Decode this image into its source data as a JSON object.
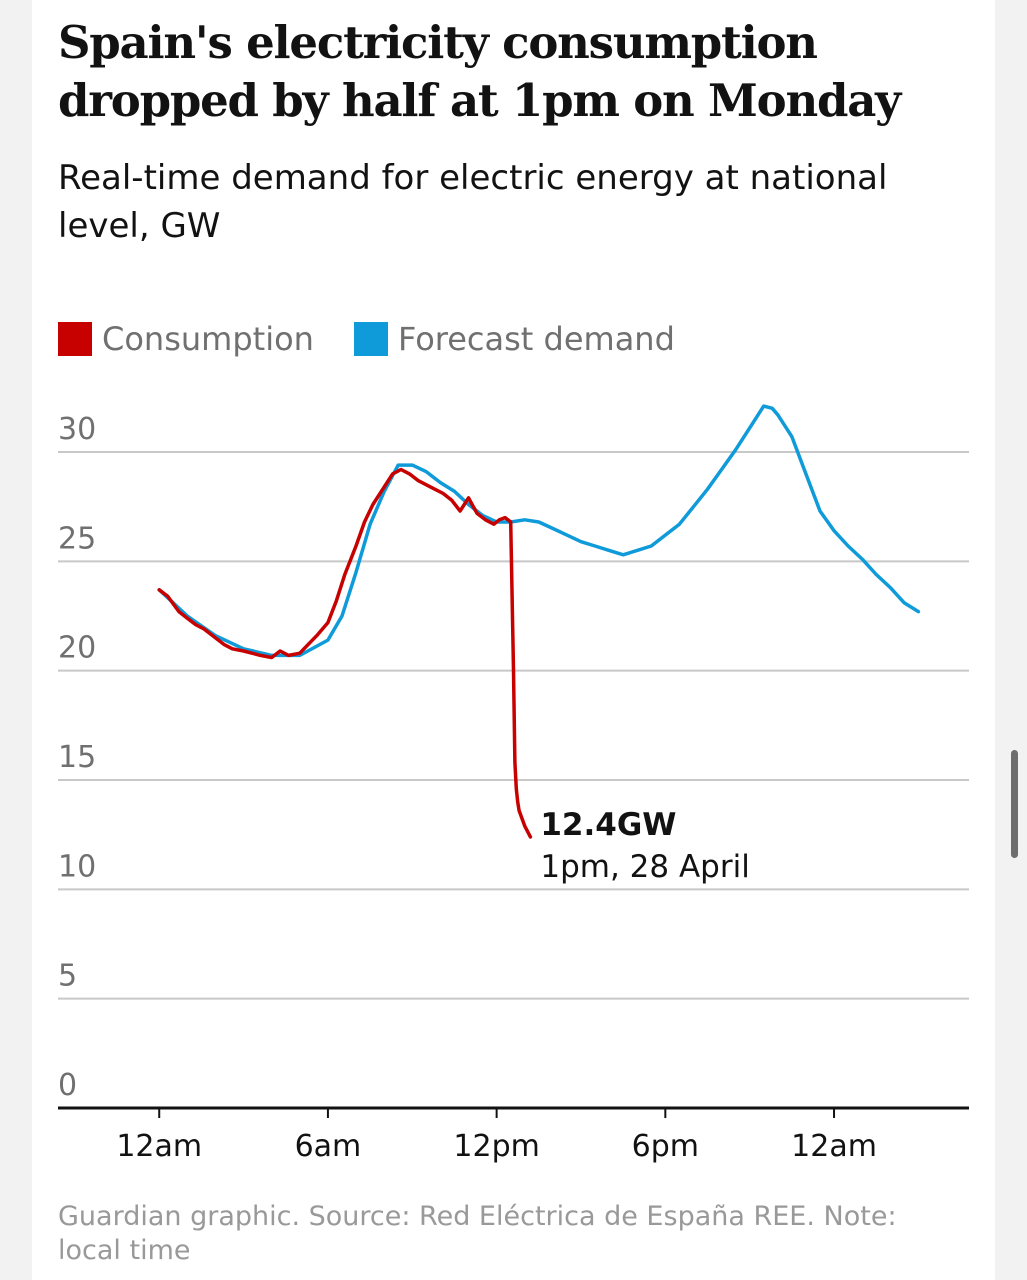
{
  "title": "Spain's electricity consumption dropped by half at 1pm on Monday",
  "subtitle": "Real-time demand for electric energy at national level, GW",
  "legend": {
    "consumption": "Consumption",
    "forecast": "Forecast demand"
  },
  "footer": "Guardian graphic. Source: Red Eléctrica de España REE. Note: local time",
  "colors": {
    "consumption": "#c70000",
    "forecast": "#0f9bd9",
    "grid": "#c8c8c8",
    "axis": "#121212"
  },
  "chart_data": {
    "type": "line",
    "title": "Spain's electricity consumption dropped by half at 1pm on Monday",
    "xlabel": "",
    "ylabel": "GW",
    "x_unit": "hours from midnight, 28 April (local time)",
    "xlim": [
      -3.6,
      28.8
    ],
    "ylim": [
      0,
      30
    ],
    "y_ticks": [
      "0",
      "5",
      "10",
      "15",
      "20",
      "25",
      "30"
    ],
    "y_tick_values": [
      0,
      5,
      10,
      15,
      20,
      25,
      30
    ],
    "x_ticks": [
      {
        "value": 0,
        "label": "12am"
      },
      {
        "value": 6,
        "label": "6am"
      },
      {
        "value": 12,
        "label": "12pm"
      },
      {
        "value": 18,
        "label": "6pm"
      },
      {
        "value": 24,
        "label": "12am"
      }
    ],
    "series": [
      {
        "name": "Forecast demand",
        "x": [
          0,
          1,
          2,
          3,
          4,
          5,
          6,
          6.5,
          7,
          7.5,
          8,
          8.5,
          9,
          9.5,
          10,
          10.5,
          11,
          11.5,
          12,
          12.5,
          13,
          13.5,
          14,
          14.5,
          15,
          15.5,
          16,
          16.5,
          17,
          17.5,
          18,
          18.5,
          19,
          19.5,
          20,
          20.5,
          21,
          21.5,
          21.8,
          22,
          22.5,
          23,
          23.5,
          24,
          24.5,
          25,
          25.5,
          26,
          26.5,
          27
        ],
        "y": [
          23.7,
          22.5,
          21.6,
          21.0,
          20.7,
          20.7,
          21.4,
          22.5,
          24.5,
          26.7,
          28.2,
          29.4,
          29.4,
          29.1,
          28.6,
          28.2,
          27.6,
          27.1,
          26.8,
          26.8,
          26.9,
          26.8,
          26.5,
          26.2,
          25.9,
          25.7,
          25.5,
          25.3,
          25.5,
          25.7,
          26.2,
          26.7,
          27.5,
          28.3,
          29.2,
          30.1,
          31.1,
          32.1,
          32.0,
          31.7,
          30.7,
          29.0,
          27.3,
          26.4,
          25.7,
          25.1,
          24.4,
          23.8,
          23.1,
          22.7
        ],
        "color": "#0f9bd9"
      },
      {
        "name": "Consumption",
        "x": [
          0,
          0.3,
          0.7,
          1,
          1.3,
          1.6,
          2,
          2.3,
          2.6,
          3,
          3.3,
          3.6,
          4,
          4.3,
          4.6,
          5,
          5.3,
          5.6,
          6,
          6.3,
          6.6,
          7,
          7.3,
          7.6,
          8,
          8.3,
          8.6,
          8.9,
          9.2,
          9.5,
          9.8,
          10.1,
          10.4,
          10.7,
          11,
          11.3,
          11.6,
          11.9,
          12.1,
          12.3,
          12.5,
          12.6,
          12.65,
          12.7,
          12.75,
          12.8,
          13.0,
          13.2
        ],
        "y": [
          23.7,
          23.4,
          22.7,
          22.4,
          22.1,
          21.9,
          21.5,
          21.2,
          21.0,
          20.9,
          20.8,
          20.7,
          20.6,
          20.9,
          20.7,
          20.8,
          21.2,
          21.6,
          22.2,
          23.2,
          24.4,
          25.7,
          26.8,
          27.6,
          28.4,
          29.0,
          29.2,
          29.0,
          28.7,
          28.5,
          28.3,
          28.1,
          27.8,
          27.3,
          27.9,
          27.2,
          26.9,
          26.7,
          26.9,
          27.0,
          26.8,
          20.0,
          15.8,
          14.6,
          14.0,
          13.6,
          12.9,
          12.4
        ],
        "color": "#c70000"
      }
    ],
    "annotation": {
      "value": "12.4GW",
      "label": "1pm, 28 April",
      "x": 13.2,
      "y": 12.4
    }
  }
}
